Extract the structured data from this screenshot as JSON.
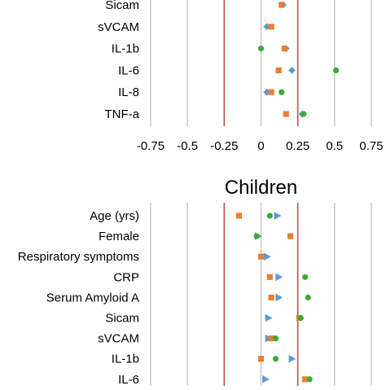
{
  "chart_data": [
    {
      "type": "scatter",
      "title": "",
      "x_ticks": [
        "-0.75",
        "-0.5",
        "-0.25",
        "0",
        "0.25",
        "0.5",
        "0.75"
      ],
      "xlim": [
        -0.75,
        0.75
      ],
      "reference_lines": [
        -0.25,
        0.25
      ],
      "categories": [
        "Sicam",
        "sVCAM",
        "IL-1b",
        "IL-6",
        "IL-8",
        "TNF-a"
      ],
      "series": [
        {
          "marker": "diamond",
          "color": "#5b9bd5",
          "values": [
            0.15,
            0.04,
            0.17,
            0.21,
            0.04,
            0.28
          ]
        },
        {
          "marker": "square",
          "color": "#ed7d31",
          "values": [
            0.14,
            0.07,
            0.16,
            0.12,
            0.07,
            0.17
          ]
        },
        {
          "marker": "circle",
          "color": "#3aaa35",
          "values": [
            null,
            null,
            0.0,
            0.51,
            0.14,
            0.29
          ]
        }
      ]
    },
    {
      "type": "scatter",
      "title": "Children",
      "xlim": [
        -0.75,
        0.75
      ],
      "reference_lines": [
        -0.25,
        0.25
      ],
      "categories": [
        "Age (yrs)",
        "Female",
        "Respiratory symptoms",
        "CRP",
        "Serum Amyloid A",
        "Sicam",
        "sVCAM",
        "IL-1b",
        "IL-6"
      ],
      "series": [
        {
          "marker": "triangle",
          "color": "#5b9bd5",
          "values": [
            0.11,
            -0.02,
            0.04,
            0.12,
            0.12,
            0.05,
            0.05,
            0.21,
            0.03
          ]
        },
        {
          "marker": "square",
          "color": "#ed7d31",
          "values": [
            -0.15,
            0.2,
            0.0,
            0.06,
            0.07,
            0.26,
            0.07,
            0.0,
            0.3
          ]
        },
        {
          "marker": "circle",
          "color": "#3aaa35",
          "values": [
            0.06,
            -0.03,
            null,
            0.3,
            0.32,
            0.27,
            0.1,
            0.1,
            0.33
          ]
        }
      ]
    }
  ]
}
